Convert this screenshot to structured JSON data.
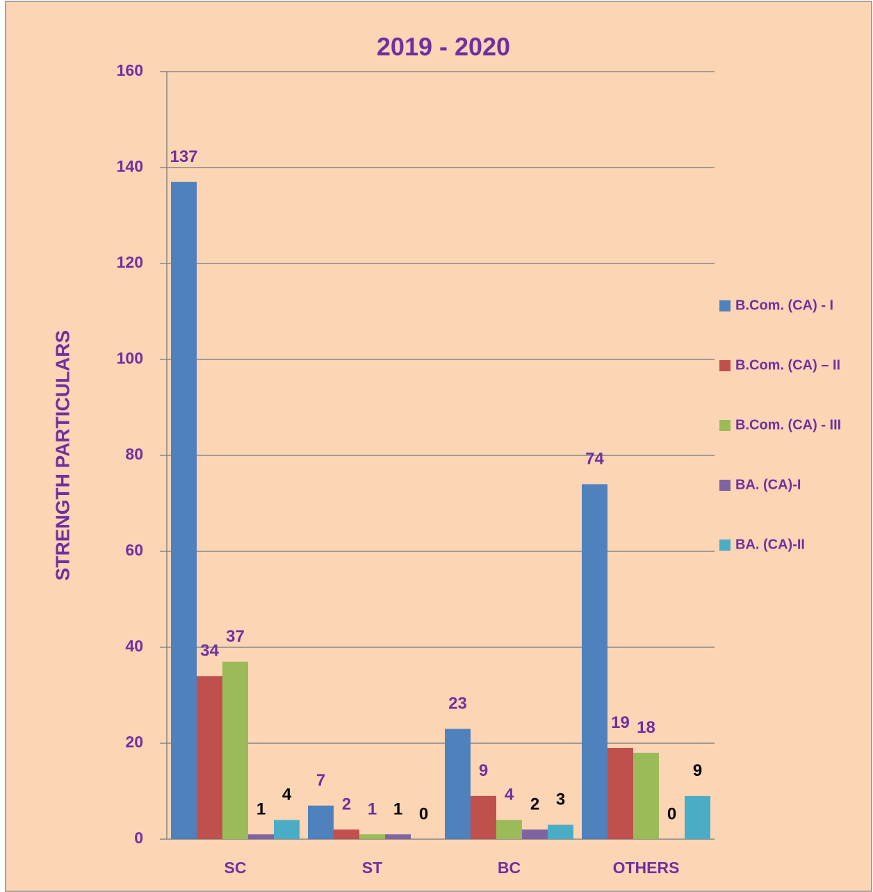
{
  "chart_data": {
    "type": "bar",
    "title": "2019 - 2020",
    "y_label": "STRENGTH PARTICULARS",
    "categories": [
      "SC",
      "ST",
      "BC",
      "OTHERS"
    ],
    "series": [
      {
        "name": "B.Com. (CA) - I",
        "color": "#4f81bd",
        "label_color": "#7030a0",
        "values": [
          137,
          7,
          23,
          74
        ]
      },
      {
        "name": "B.Com. (CA) – II",
        "color": "#c0504d",
        "label_color": "#7030a0",
        "values": [
          34,
          2,
          9,
          19
        ]
      },
      {
        "name": "B.Com. (CA) - III",
        "color": "#9bbb59",
        "label_color": "#7030a0",
        "values": [
          37,
          1,
          4,
          18
        ]
      },
      {
        "name": "BA. (CA)-I",
        "color": "#8064a2",
        "label_color": "#000000",
        "values": [
          1,
          1,
          2,
          0
        ]
      },
      {
        "name": "BA. (CA)-II",
        "color": "#4bacc6",
        "label_color": "#000000",
        "values": [
          4,
          0,
          3,
          9
        ]
      }
    ],
    "ylim": [
      0,
      160
    ],
    "yticks": [
      0,
      20,
      40,
      60,
      80,
      100,
      120,
      140,
      160
    ],
    "grid": true,
    "legend": "right"
  }
}
